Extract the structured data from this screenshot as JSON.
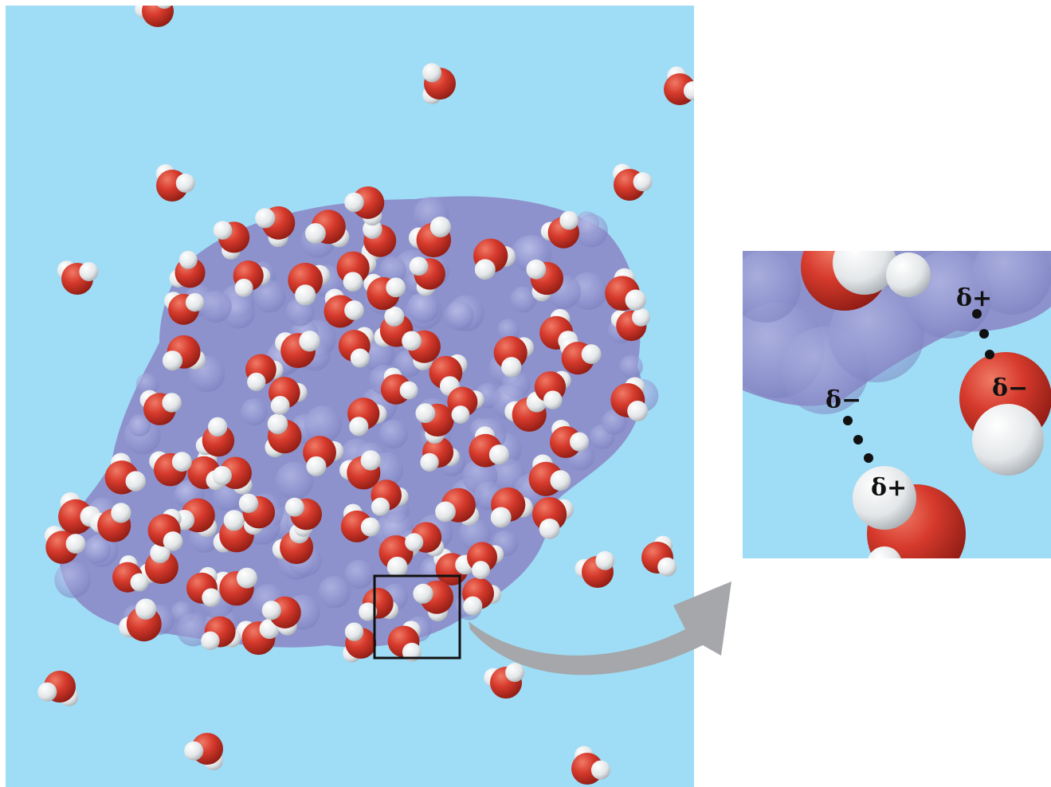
{
  "colors": {
    "water_background": "#9fdcf5",
    "oxygen": "#d63a2c",
    "hydrogen": "#eef0f0",
    "protein": "#8d92cc",
    "arrow": "#a5a7aa",
    "frame": "#111111",
    "dots": "#111111"
  },
  "inset": {
    "labels": {
      "protein_top_positive": "δ+",
      "water_right_negative": "δ−",
      "protein_left_negative": "δ−",
      "water_bottom_positive": "δ+"
    }
  },
  "icons": {
    "arrow": "curved-arrow-icon",
    "box": "zoom-box"
  }
}
